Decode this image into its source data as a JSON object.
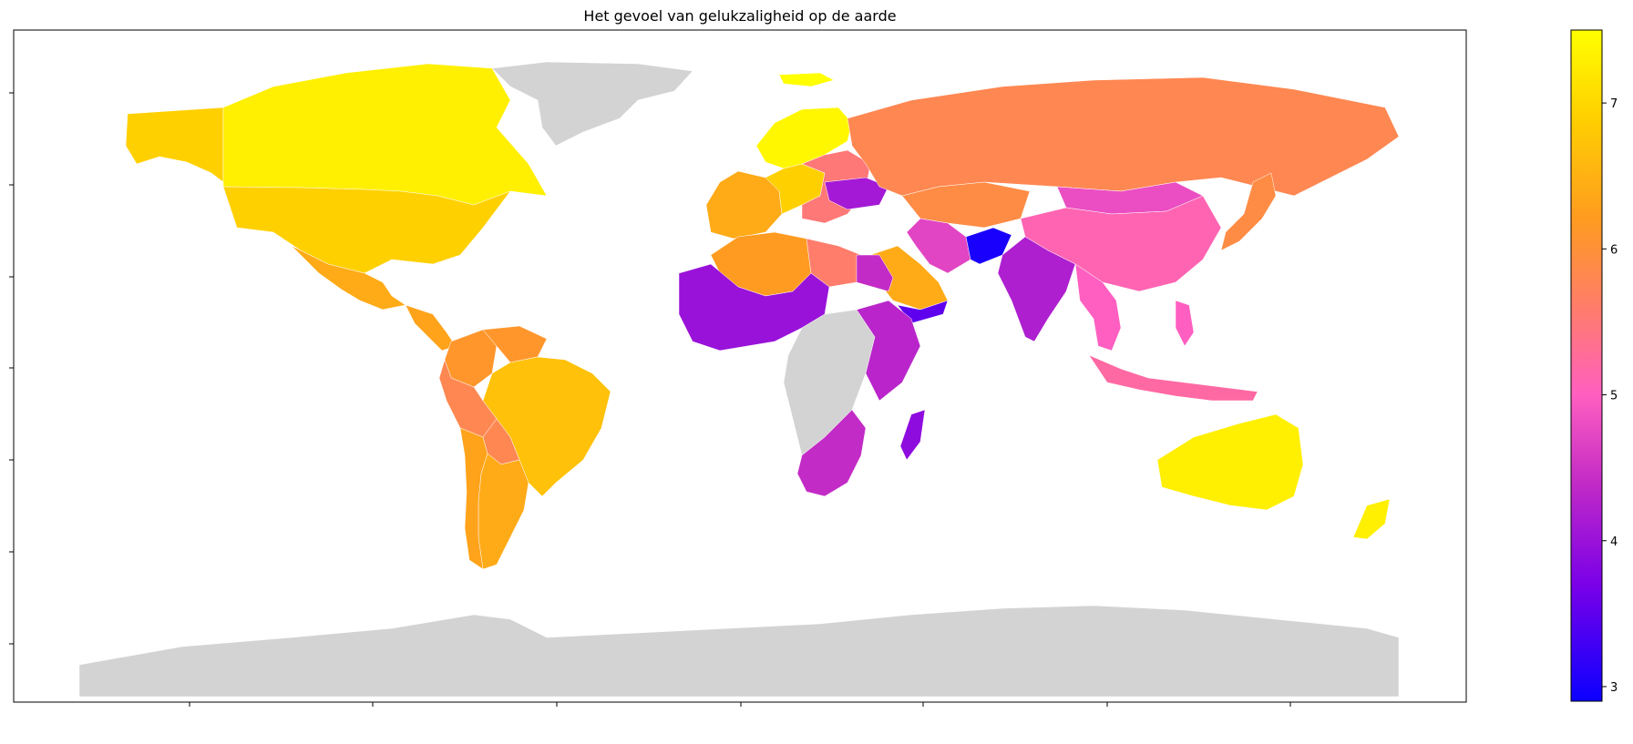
{
  "title": "Het gevoel van gelukzaligheid op de aarde",
  "colorbar": {
    "cmap": "gnuplot2-like",
    "range": [
      2.9,
      7.5
    ],
    "ticks": [
      "3",
      "4",
      "5",
      "6",
      "7"
    ],
    "stops": [
      {
        "value": 2.9,
        "color": "#0b00ff"
      },
      {
        "value": 3.7,
        "color": "#7a00e8"
      },
      {
        "value": 4.4,
        "color": "#c32bc6"
      },
      {
        "value": 5.0,
        "color": "#ff5fc0"
      },
      {
        "value": 5.6,
        "color": "#ff7d6a"
      },
      {
        "value": 6.2,
        "color": "#ff9b20"
      },
      {
        "value": 6.9,
        "color": "#ffd000"
      },
      {
        "value": 7.5,
        "color": "#ffff00"
      }
    ]
  },
  "map": {
    "nodata_color": "#d3d3d3",
    "regions": [
      {
        "name": "Canada",
        "value": 7.3
      },
      {
        "name": "United States",
        "value": 6.9
      },
      {
        "name": "Mexico",
        "value": 6.4
      },
      {
        "name": "Alaska",
        "value": 6.9
      },
      {
        "name": "Central America",
        "value": 6.3
      },
      {
        "name": "Colombia",
        "value": 6.1
      },
      {
        "name": "Venezuela",
        "value": 6.1
      },
      {
        "name": "Peru",
        "value": 5.8
      },
      {
        "name": "Brazil",
        "value": 6.7
      },
      {
        "name": "Bolivia",
        "value": 5.8
      },
      {
        "name": "Argentina",
        "value": 6.4
      },
      {
        "name": "Chile",
        "value": 6.3
      },
      {
        "name": "Greenland",
        "value": null
      },
      {
        "name": "Iceland",
        "value": 7.5
      },
      {
        "name": "Scandinavia",
        "value": 7.4
      },
      {
        "name": "Western Europe",
        "value": 6.4
      },
      {
        "name": "Central Europe",
        "value": 6.9
      },
      {
        "name": "Eastern Europe",
        "value": 5.5
      },
      {
        "name": "Ukraine",
        "value": 4.1
      },
      {
        "name": "Russia",
        "value": 5.8
      },
      {
        "name": "Kazakhstan",
        "value": 5.9
      },
      {
        "name": "Mongolia",
        "value": 4.8
      },
      {
        "name": "China",
        "value": 5.1
      },
      {
        "name": "Japan",
        "value": 5.9
      },
      {
        "name": "India",
        "value": 4.2
      },
      {
        "name": "Afghanistan",
        "value": 3.0
      },
      {
        "name": "Iran",
        "value": 4.7
      },
      {
        "name": "Saudi Arabia",
        "value": 6.4
      },
      {
        "name": "Yemen",
        "value": 3.5
      },
      {
        "name": "Southeast Asia",
        "value": 5.0
      },
      {
        "name": "Indonesia",
        "value": 5.2
      },
      {
        "name": "Algeria",
        "value": 6.2
      },
      {
        "name": "Libya",
        "value": 5.6
      },
      {
        "name": "Egypt",
        "value": 4.4
      },
      {
        "name": "West Africa",
        "value": 4.0
      },
      {
        "name": "East Africa",
        "value": 4.3
      },
      {
        "name": "Southern Africa",
        "value": 4.4
      },
      {
        "name": "Madagascar",
        "value": 3.9
      },
      {
        "name": "Central Africa",
        "value": null
      },
      {
        "name": "Australia",
        "value": 7.3
      },
      {
        "name": "New Zealand",
        "value": 7.3
      },
      {
        "name": "Antarctica",
        "value": null
      }
    ]
  }
}
